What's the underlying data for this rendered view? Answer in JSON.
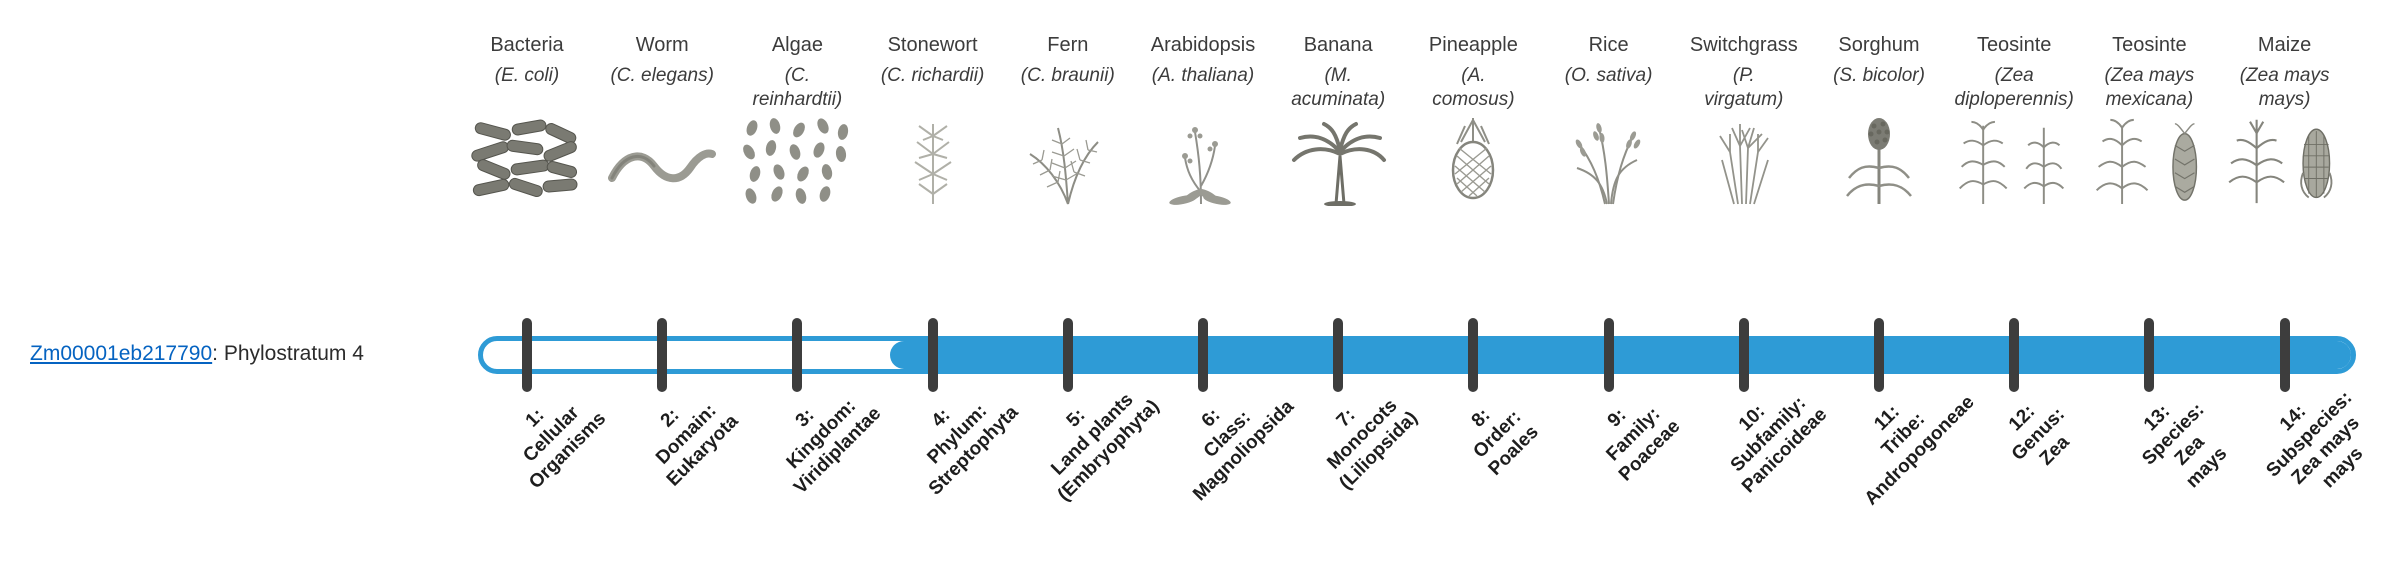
{
  "colors": {
    "blue": "#2E9BD6",
    "tick": "#3d3d3d",
    "link": "#0563C1"
  },
  "gene": {
    "id": "Zm00001eb217790",
    "suffix": ": Phylostratum 4",
    "phylostratum": 4
  },
  "organisms": [
    {
      "name": "Bacteria",
      "sci": "(E. coli)",
      "icon": "bacteria"
    },
    {
      "name": "Worm",
      "sci": "(C. elegans)",
      "icon": "worm"
    },
    {
      "name": "Algae",
      "sci": "(C.\nreinhardtii)",
      "icon": "algae"
    },
    {
      "name": "Stonewort",
      "sci": "(C. richardii)",
      "icon": "stonewort"
    },
    {
      "name": "Fern",
      "sci": "(C. braunii)",
      "icon": "fern"
    },
    {
      "name": "Arabidopsis",
      "sci": "(A. thaliana)",
      "icon": "arabidopsis"
    },
    {
      "name": "Banana",
      "sci": "(M.\nacuminata)",
      "icon": "banana"
    },
    {
      "name": "Pineapple",
      "sci": "(A.\ncomosus)",
      "icon": "pineapple"
    },
    {
      "name": "Rice",
      "sci": "(O. sativa)",
      "icon": "rice"
    },
    {
      "name": "Switchgrass",
      "sci": "(P.\nvirgatum)",
      "icon": "switchgrass"
    },
    {
      "name": "Sorghum",
      "sci": "(S. bicolor)",
      "icon": "sorghum"
    },
    {
      "name": "Teosinte",
      "sci": "(Zea\ndiploperennis)",
      "icon": "teosinte"
    },
    {
      "name": "Teosinte",
      "sci": "(Zea mays\nmexicana)",
      "icon": "teosinte-spike"
    },
    {
      "name": "Maize",
      "sci": "(Zea mays\nmays)",
      "icon": "maize"
    }
  ],
  "strata": [
    {
      "lines": [
        "1:",
        "Cellular",
        "Organisms"
      ]
    },
    {
      "lines": [
        "2:",
        "Domain:",
        "Eukaryota"
      ]
    },
    {
      "lines": [
        "3:",
        "Kingdom:",
        "Viridiplantae"
      ]
    },
    {
      "lines": [
        "4:",
        "Phylum:",
        "Streptophyta"
      ]
    },
    {
      "lines": [
        "5:",
        "Land plants",
        "(Embryophyta)"
      ]
    },
    {
      "lines": [
        "6:",
        "Class:",
        "Magnoliopsida"
      ]
    },
    {
      "lines": [
        "7:",
        "Monocots",
        "(Liliopsida)"
      ]
    },
    {
      "lines": [
        "8:",
        "Order:",
        "Poales"
      ]
    },
    {
      "lines": [
        "9:",
        "Family:",
        "Poaceae"
      ]
    },
    {
      "lines": [
        "10:",
        "Subfamily:",
        "Panicoideae"
      ]
    },
    {
      "lines": [
        "11:",
        "Tribe:",
        "Andropogoneae"
      ]
    },
    {
      "lines": [
        "12:",
        "Genus:",
        "Zea"
      ]
    },
    {
      "lines": [
        "13:",
        "Species:",
        "Zea",
        "mays"
      ]
    },
    {
      "lines": [
        "14:",
        "Subspecies:",
        "Zea mays",
        "mays"
      ]
    }
  ]
}
